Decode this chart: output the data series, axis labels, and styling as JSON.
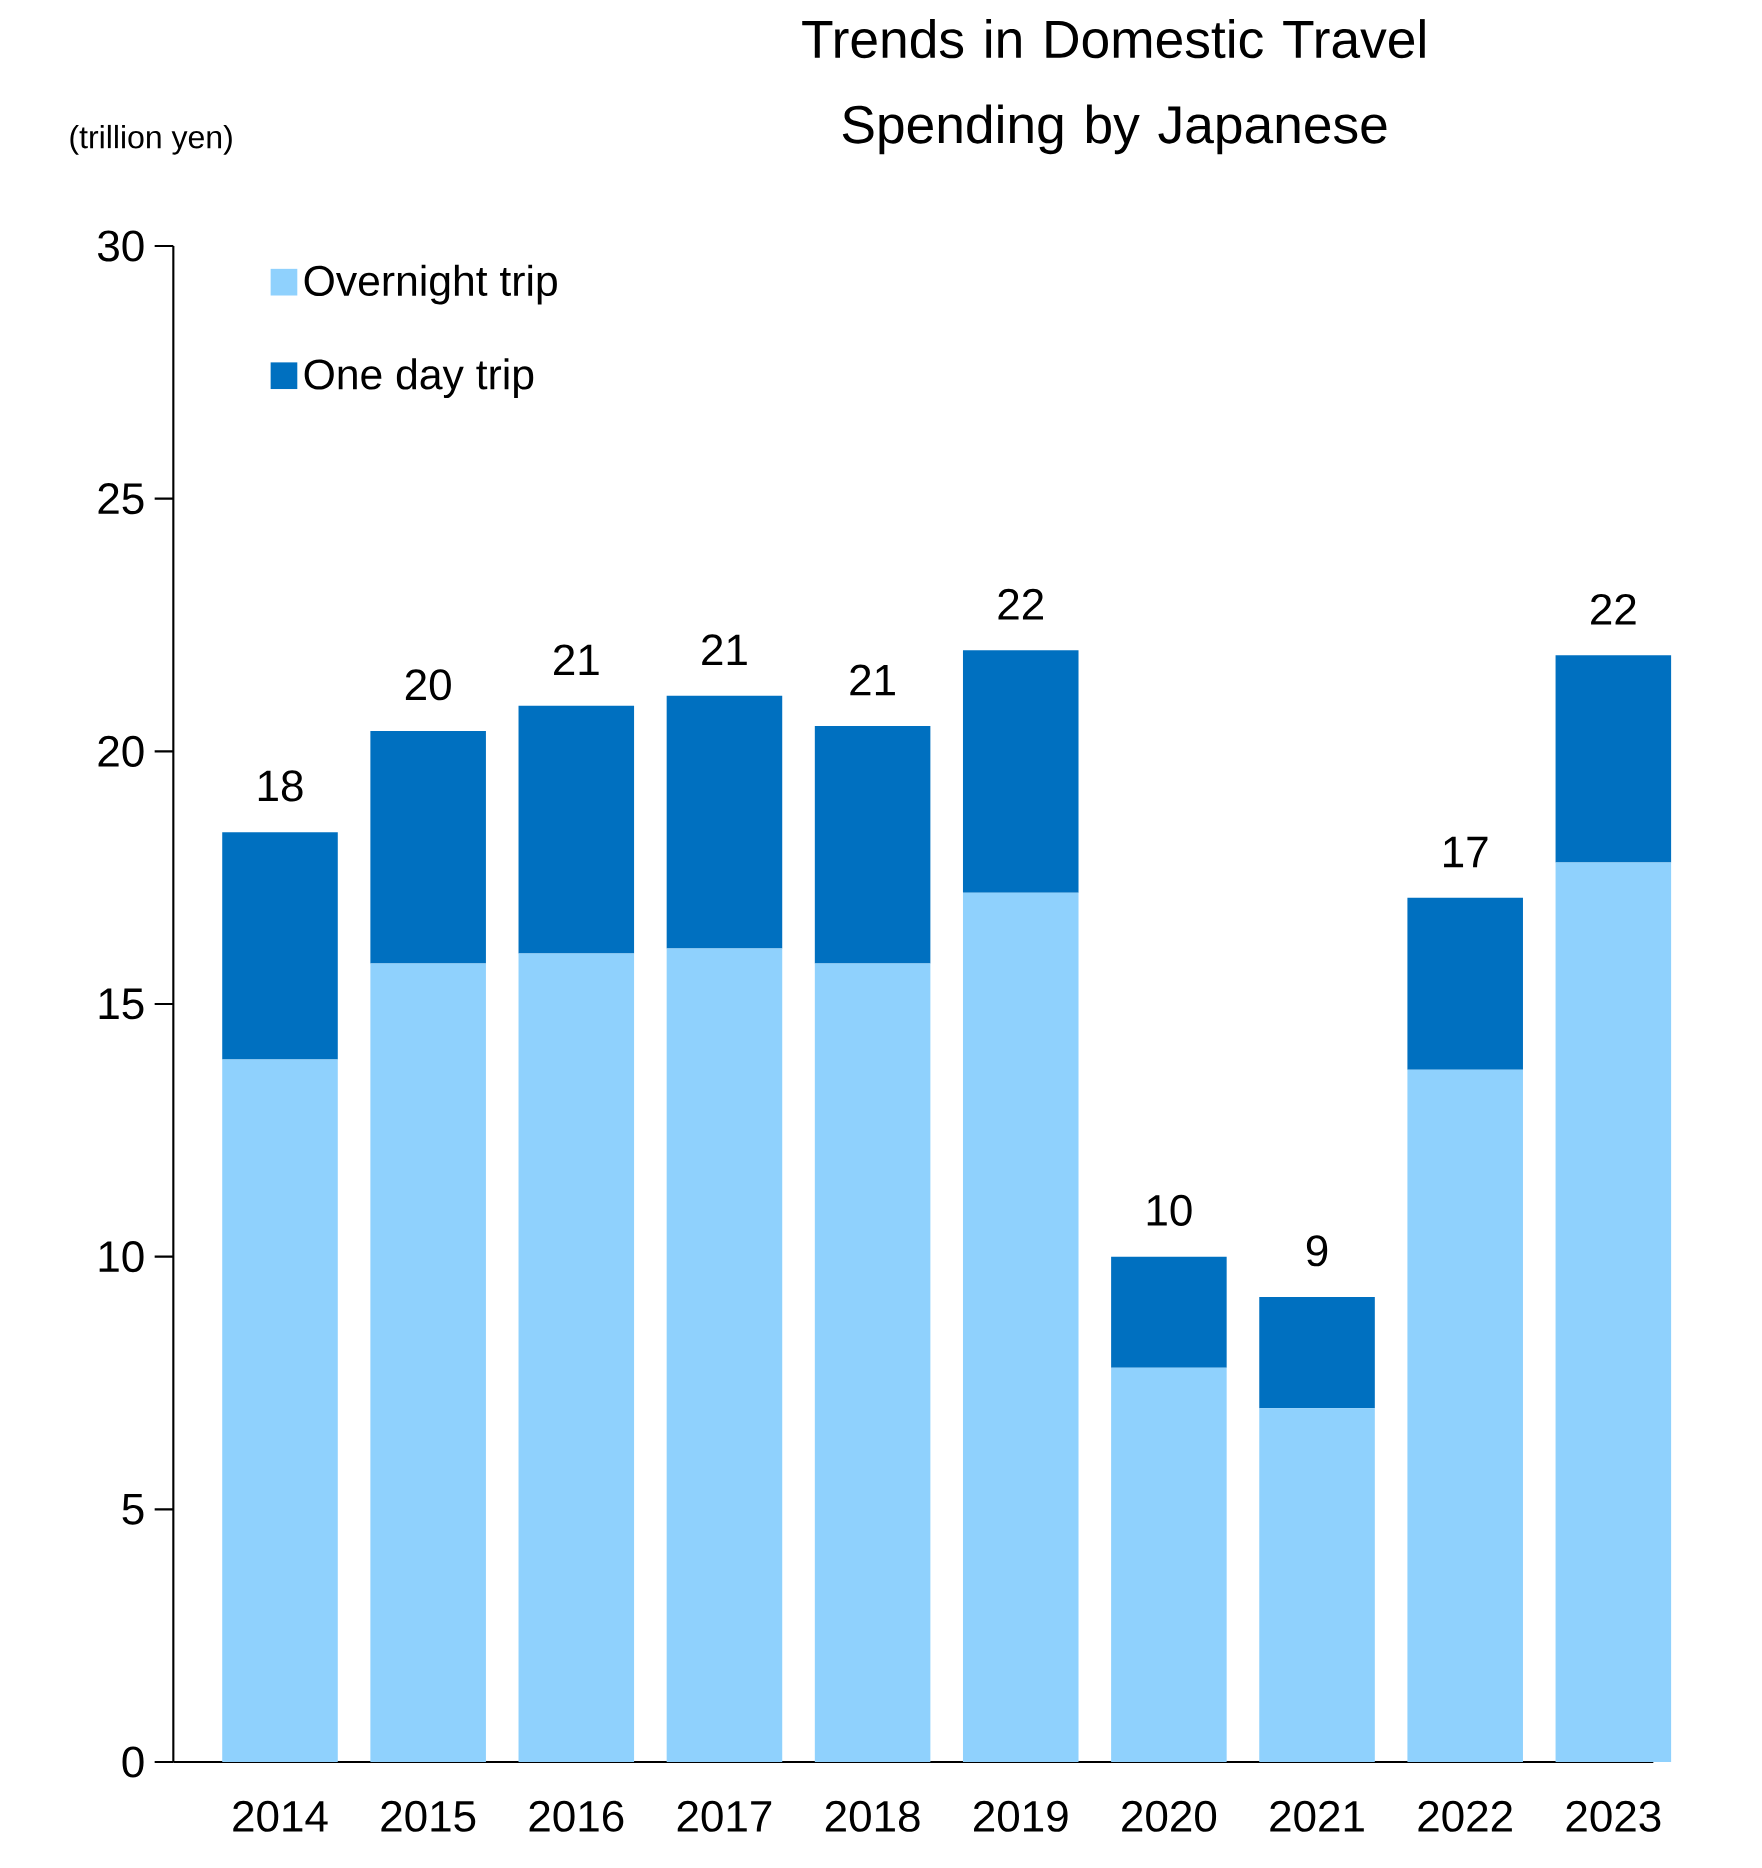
{
  "chart_data": {
    "type": "bar",
    "stacked": true,
    "title": "Trends in Domestic Travel Spending by Japanese",
    "ylabel": "(trillion yen)",
    "categories": [
      "2014",
      "2015",
      "2016",
      "2017",
      "2018",
      "2019",
      "2020",
      "2021",
      "2022",
      "2023"
    ],
    "series": [
      {
        "name": "Overnight trip",
        "color": "#8fd1fd",
        "values": [
          13.9,
          15.8,
          16.0,
          16.1,
          15.8,
          17.2,
          7.8,
          7.0,
          13.7,
          17.8
        ]
      },
      {
        "name": "One day trip",
        "color": "#0070c0",
        "values": [
          4.5,
          4.6,
          4.9,
          5.0,
          4.7,
          4.8,
          2.2,
          2.2,
          3.4,
          4.1
        ]
      }
    ],
    "totals": [
      "18",
      "20",
      "21",
      "21",
      "21",
      "22",
      "10",
      "9",
      "17",
      "22"
    ],
    "ylim": [
      0,
      30
    ],
    "yticks": [
      0,
      5,
      10,
      15,
      20,
      25,
      30
    ],
    "legend": "top left",
    "grid": false
  }
}
